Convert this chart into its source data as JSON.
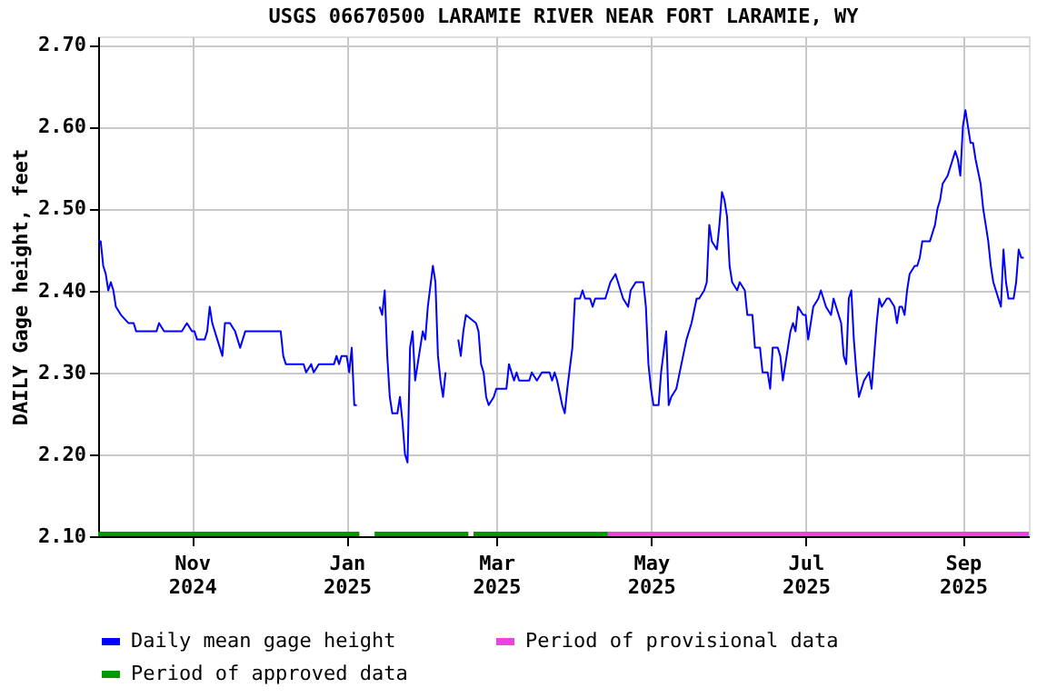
{
  "chart_data": {
    "type": "line",
    "title": "USGS 06670500 LARAMIE RIVER NEAR FORT LARAMIE, WY",
    "ylabel": "DAILY Gage height, feet",
    "xlim": [
      "2024-09-25",
      "2025-09-27"
    ],
    "xticks": [
      {
        "value": "2024-11-01",
        "label": "Nov 2024"
      },
      {
        "value": "2025-01-01",
        "label": "Jan 2025"
      },
      {
        "value": "2025-03-01",
        "label": "Mar 2025"
      },
      {
        "value": "2025-05-01",
        "label": "May 2025"
      },
      {
        "value": "2025-07-01",
        "label": "Jul 2025"
      },
      {
        "value": "2025-09-01",
        "label": "Sep 2025"
      }
    ],
    "ylim": [
      2.1,
      2.71
    ],
    "yticks": [
      {
        "value": 2.1,
        "label": "2.10"
      },
      {
        "value": 2.2,
        "label": "2.20"
      },
      {
        "value": 2.3,
        "label": "2.30"
      },
      {
        "value": 2.4,
        "label": "2.40"
      },
      {
        "value": 2.5,
        "label": "2.50"
      },
      {
        "value": 2.6,
        "label": "2.60"
      },
      {
        "value": 2.7,
        "label": "2.70"
      }
    ],
    "grid": true,
    "legend": "bottom",
    "series": [
      {
        "name": "Daily mean gage height",
        "color": "#0000ff",
        "x": [
          "2024-09-25",
          "2024-09-26",
          "2024-09-27",
          "2024-09-28",
          "2024-09-29",
          "2024-09-30",
          "2024-10-01",
          "2024-10-02",
          "2024-10-04",
          "2024-10-07",
          "2024-10-09",
          "2024-10-10",
          "2024-10-18",
          "2024-10-19",
          "2024-10-21",
          "2024-10-28",
          "2024-10-30",
          "2024-11-01",
          "2024-11-02",
          "2024-11-03",
          "2024-11-06",
          "2024-11-07",
          "2024-11-08",
          "2024-11-09",
          "2024-11-10",
          "2024-11-12",
          "2024-11-13",
          "2024-11-14",
          "2024-11-16",
          "2024-11-18",
          "2024-11-20",
          "2024-11-21",
          "2024-11-22",
          "2024-12-06",
          "2024-12-07",
          "2024-12-08",
          "2024-12-15",
          "2024-12-16",
          "2024-12-18",
          "2024-12-19",
          "2024-12-21",
          "2024-12-27",
          "2024-12-28",
          "2024-12-29",
          "2024-12-30",
          "2025-01-01",
          "2025-01-02",
          "2025-01-03",
          "2025-01-04",
          "2025-01-05",
          "2025-01-10",
          "2025-01-14",
          "2025-01-15",
          "2025-01-16",
          "2025-01-17",
          "2025-01-18",
          "2025-01-19",
          "2025-01-21",
          "2025-01-22",
          "2025-01-23",
          "2025-01-24",
          "2025-01-25",
          "2025-01-26",
          "2025-01-27",
          "2025-01-28",
          "2025-01-29",
          "2025-01-31",
          "2025-02-01",
          "2025-02-02",
          "2025-02-04",
          "2025-02-05",
          "2025-02-06",
          "2025-02-07",
          "2025-02-08",
          "2025-02-09",
          "2025-02-11",
          "2025-02-14",
          "2025-02-15",
          "2025-02-16",
          "2025-02-17",
          "2025-02-21",
          "2025-02-22",
          "2025-02-23",
          "2025-02-24",
          "2025-02-25",
          "2025-02-26",
          "2025-02-28",
          "2025-03-01",
          "2025-03-05",
          "2025-03-06",
          "2025-03-08",
          "2025-03-09",
          "2025-03-10",
          "2025-03-14",
          "2025-03-15",
          "2025-03-17",
          "2025-03-19",
          "2025-03-22",
          "2025-03-23",
          "2025-03-24",
          "2025-03-25",
          "2025-03-27",
          "2025-03-28",
          "2025-03-29",
          "2025-03-31",
          "2025-04-01",
          "2025-04-03",
          "2025-04-04",
          "2025-04-05",
          "2025-04-07",
          "2025-04-08",
          "2025-04-09",
          "2025-04-13",
          "2025-04-14",
          "2025-04-15",
          "2025-04-17",
          "2025-04-19",
          "2025-04-20",
          "2025-04-22",
          "2025-04-23",
          "2025-04-25",
          "2025-04-28",
          "2025-04-29",
          "2025-04-30",
          "2025-05-01",
          "2025-05-02",
          "2025-05-04",
          "2025-05-05",
          "2025-05-07",
          "2025-05-08",
          "2025-05-09",
          "2025-05-11",
          "2025-05-13",
          "2025-05-15",
          "2025-05-17",
          "2025-05-19",
          "2025-05-20",
          "2025-05-22",
          "2025-05-23",
          "2025-05-24",
          "2025-05-25",
          "2025-05-27",
          "2025-05-28",
          "2025-05-29",
          "2025-05-30",
          "2025-05-31",
          "2025-06-01",
          "2025-06-02",
          "2025-06-04",
          "2025-06-05",
          "2025-06-07",
          "2025-06-08",
          "2025-06-10",
          "2025-06-11",
          "2025-06-13",
          "2025-06-14",
          "2025-06-16",
          "2025-06-17",
          "2025-06-18",
          "2025-06-20",
          "2025-06-21",
          "2025-06-22",
          "2025-06-23",
          "2025-06-25",
          "2025-06-26",
          "2025-06-27",
          "2025-06-28",
          "2025-06-30",
          "2025-07-01",
          "2025-07-02",
          "2025-07-04",
          "2025-07-06",
          "2025-07-07",
          "2025-07-09",
          "2025-07-11",
          "2025-07-12",
          "2025-07-14",
          "2025-07-15",
          "2025-07-16",
          "2025-07-17",
          "2025-07-18",
          "2025-07-19",
          "2025-07-20",
          "2025-07-21",
          "2025-07-22",
          "2025-07-23",
          "2025-07-24",
          "2025-07-26",
          "2025-07-27",
          "2025-07-28",
          "2025-07-29",
          "2025-07-30",
          "2025-07-31",
          "2025-08-02",
          "2025-08-03",
          "2025-08-05",
          "2025-08-06",
          "2025-08-07",
          "2025-08-08",
          "2025-08-09",
          "2025-08-10",
          "2025-08-11",
          "2025-08-13",
          "2025-08-14",
          "2025-08-15",
          "2025-08-16",
          "2025-08-17",
          "2025-08-19",
          "2025-08-21",
          "2025-08-22",
          "2025-08-23",
          "2025-08-24",
          "2025-08-26",
          "2025-08-27",
          "2025-08-28",
          "2025-08-29",
          "2025-08-30",
          "2025-08-31",
          "2025-09-01",
          "2025-09-02",
          "2025-09-03",
          "2025-09-04",
          "2025-09-05",
          "2025-09-06",
          "2025-09-08",
          "2025-09-09",
          "2025-09-10",
          "2025-09-11",
          "2025-09-12",
          "2025-09-13",
          "2025-09-15",
          "2025-09-16",
          "2025-09-17",
          "2025-09-18",
          "2025-09-19",
          "2025-09-20",
          "2025-09-21",
          "2025-09-22",
          "2025-09-23",
          "2025-09-24",
          "2025-09-25"
        ],
        "values": [
          2.46,
          2.46,
          2.43,
          2.42,
          2.4,
          2.41,
          2.4,
          2.38,
          2.37,
          2.36,
          2.36,
          2.35,
          2.35,
          2.36,
          2.35,
          2.35,
          2.36,
          2.35,
          2.35,
          2.34,
          2.34,
          2.35,
          2.38,
          2.36,
          2.35,
          2.33,
          2.32,
          2.36,
          2.36,
          2.35,
          2.33,
          2.34,
          2.35,
          2.35,
          2.32,
          2.31,
          2.31,
          2.3,
          2.31,
          2.3,
          2.31,
          2.31,
          2.32,
          2.31,
          2.32,
          2.32,
          2.3,
          2.33,
          2.26,
          2.26,
          null,
          2.38,
          2.37,
          2.4,
          2.32,
          2.27,
          2.25,
          2.25,
          2.27,
          2.24,
          2.2,
          2.19,
          2.33,
          2.35,
          2.29,
          2.31,
          2.35,
          2.34,
          2.38,
          2.43,
          2.41,
          2.32,
          2.29,
          2.27,
          2.3,
          null,
          2.34,
          2.32,
          2.35,
          2.37,
          2.36,
          2.35,
          2.31,
          2.3,
          2.27,
          2.26,
          2.27,
          2.28,
          2.28,
          2.31,
          2.29,
          2.3,
          2.29,
          2.29,
          2.3,
          2.29,
          2.3,
          2.3,
          2.29,
          2.3,
          2.29,
          2.26,
          2.25,
          2.28,
          2.33,
          2.39,
          2.39,
          2.4,
          2.39,
          2.39,
          2.38,
          2.39,
          2.39,
          2.4,
          2.41,
          2.42,
          2.4,
          2.39,
          2.38,
          2.4,
          2.41,
          2.41,
          2.38,
          2.31,
          2.28,
          2.26,
          2.26,
          2.3,
          2.35,
          2.26,
          2.27,
          2.28,
          2.31,
          2.34,
          2.36,
          2.39,
          2.39,
          2.4,
          2.41,
          2.48,
          2.46,
          2.45,
          2.48,
          2.52,
          2.51,
          2.49,
          2.43,
          2.41,
          2.4,
          2.41,
          2.4,
          2.37,
          2.37,
          2.33,
          2.33,
          2.3,
          2.3,
          2.28,
          2.33,
          2.33,
          2.32,
          2.29,
          2.31,
          2.35,
          2.36,
          2.35,
          2.38,
          2.37,
          2.37,
          2.34,
          2.38,
          2.39,
          2.4,
          2.38,
          2.37,
          2.39,
          2.37,
          2.36,
          2.32,
          2.31,
          2.39,
          2.4,
          2.34,
          2.3,
          2.27,
          2.28,
          2.29,
          2.3,
          2.28,
          2.32,
          2.36,
          2.39,
          2.38,
          2.39,
          2.39,
          2.38,
          2.36,
          2.38,
          2.38,
          2.37,
          2.4,
          2.42,
          2.43,
          2.43,
          2.44,
          2.46,
          2.46,
          2.46,
          2.48,
          2.5,
          2.51,
          2.53,
          2.54,
          2.55,
          2.56,
          2.57,
          2.56,
          2.54,
          2.6,
          2.62,
          2.6,
          2.58,
          2.58,
          2.56,
          2.53,
          2.5,
          2.48,
          2.46,
          2.43,
          2.41,
          2.39,
          2.38,
          2.45,
          2.41,
          2.39,
          2.39,
          2.39,
          2.41,
          2.45,
          2.44,
          2.44
        ]
      },
      {
        "name": "Period of provisional data",
        "color": "#ee44dd",
        "x": [
          "2025-04-14",
          "2025-09-27"
        ],
        "values": [
          2.1,
          2.1
        ]
      },
      {
        "name": "Period of approved data",
        "color": "#009900",
        "x": [
          "2024-09-25",
          "2025-01-06",
          "2025-01-09",
          "2025-01-12",
          "2025-02-18",
          "2025-02-19",
          "2025-02-20",
          "2025-04-14"
        ],
        "values": [
          2.1,
          2.1,
          null,
          2.1,
          2.1,
          null,
          2.1,
          2.1
        ]
      }
    ]
  }
}
